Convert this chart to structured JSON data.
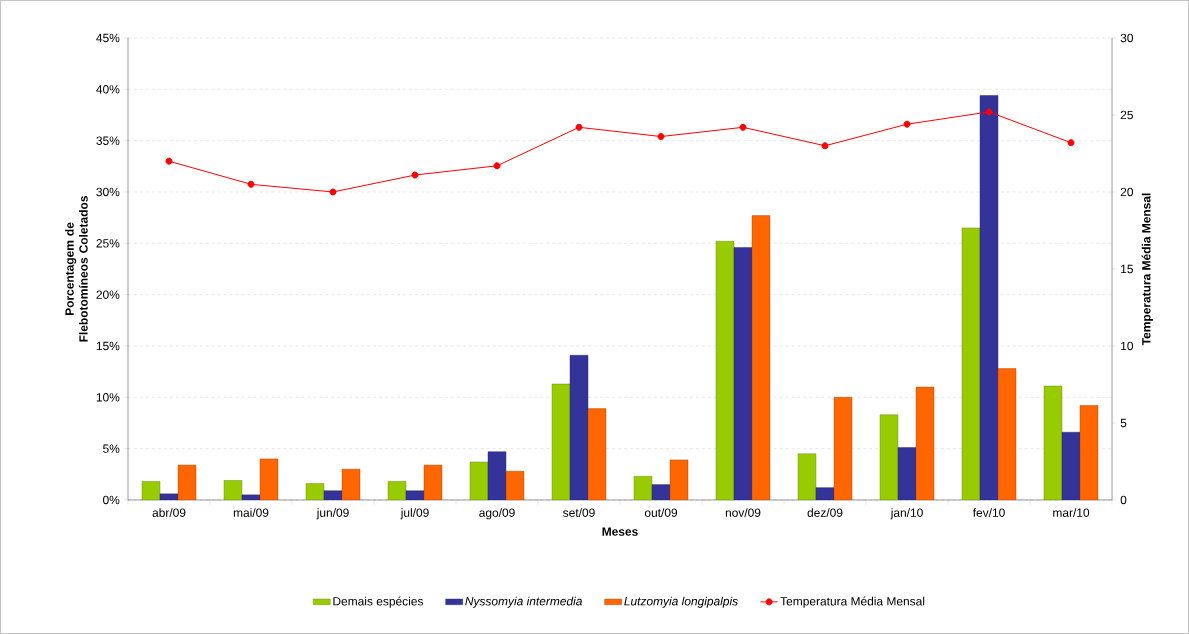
{
  "chart_data": {
    "type": "bar",
    "xlabel": "Meses",
    "ylabel": "Porcentagem de Flebotomíneos Coletados",
    "y2label": "Temperatura Média Mensal",
    "categories": [
      "abr/09",
      "mai/09",
      "jun/09",
      "jul/09",
      "ago/09",
      "set/09",
      "out/09",
      "nov/09",
      "dez/09",
      "jan/10",
      "fev/10",
      "mar/10"
    ],
    "series": [
      {
        "name": "Demais espécies",
        "color": "#99cc00",
        "values": [
          1.8,
          1.9,
          1.6,
          1.8,
          3.7,
          11.3,
          2.3,
          25.2,
          4.5,
          8.3,
          26.5,
          11.1
        ]
      },
      {
        "name": "*Nyssomyia intermedia*",
        "color": "#333399",
        "values": [
          0.6,
          0.5,
          0.9,
          0.9,
          4.7,
          14.1,
          1.5,
          24.6,
          1.2,
          5.1,
          39.4,
          6.6
        ]
      },
      {
        "name": "*Lutzomyia longipalpis*",
        "color": "#ff6600",
        "values": [
          3.4,
          4.0,
          3.0,
          3.4,
          2.8,
          8.9,
          3.9,
          27.7,
          10.0,
          11.0,
          12.8,
          9.2
        ]
      },
      {
        "name": "Temperatura Média Mensal",
        "type": "line",
        "axis": "y2",
        "color": "#ff0000",
        "marker": "circle",
        "values": [
          22.0,
          20.5,
          20.0,
          21.1,
          21.7,
          24.2,
          23.6,
          24.2,
          23.0,
          24.4,
          25.2,
          23.2
        ]
      }
    ],
    "ylim": [
      0,
      45
    ],
    "yticks": [
      {
        "value": 0,
        "label": "0%"
      },
      {
        "value": 5,
        "label": "5%"
      },
      {
        "value": 10,
        "label": "10%"
      },
      {
        "value": 15,
        "label": "15%"
      },
      {
        "value": 20,
        "label": "20%"
      },
      {
        "value": 25,
        "label": "25%"
      },
      {
        "value": 30,
        "label": "30%"
      },
      {
        "value": 35,
        "label": "35%"
      },
      {
        "value": 40,
        "label": "40%"
      },
      {
        "value": 45,
        "label": "45%"
      }
    ],
    "y2lim": [
      0,
      30
    ],
    "y2ticks": [
      0,
      5,
      10,
      15,
      20,
      25,
      30
    ],
    "grid": "y",
    "legend": "bottom"
  }
}
